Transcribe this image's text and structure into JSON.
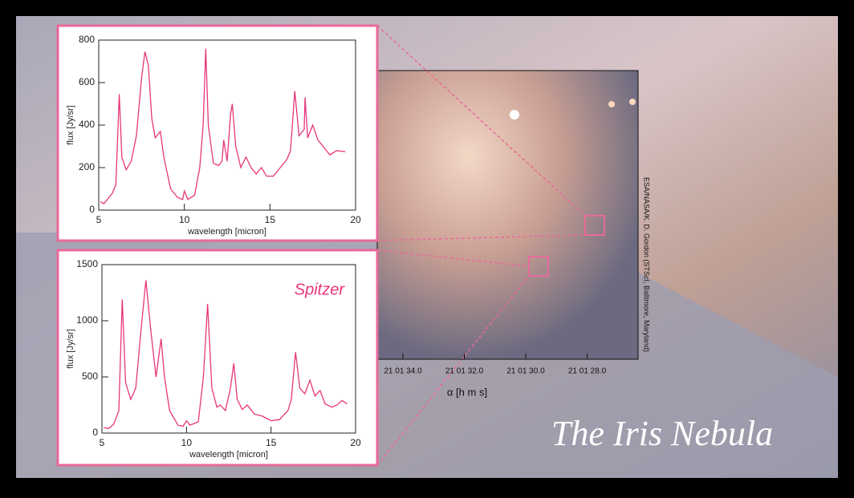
{
  "chart_data": [
    {
      "type": "line",
      "xlabel": "wavelength [micron]",
      "ylabel": "flux [Jy/sr]",
      "xlim": [
        5,
        20
      ],
      "xticks": [
        5,
        10,
        15,
        20
      ],
      "ylim": [
        0,
        800
      ],
      "yticks": [
        0,
        200,
        400,
        600,
        800
      ],
      "x": [
        5.1,
        5.3,
        5.6,
        5.8,
        6.0,
        6.2,
        6.35,
        6.6,
        6.9,
        7.2,
        7.5,
        7.7,
        7.9,
        8.1,
        8.3,
        8.6,
        8.8,
        9.2,
        9.6,
        9.9,
        10.0,
        10.2,
        10.6,
        10.9,
        11.1,
        11.25,
        11.4,
        11.7,
        12.0,
        12.2,
        12.3,
        12.5,
        12.7,
        12.8,
        13.0,
        13.3,
        13.6,
        13.9,
        14.2,
        14.5,
        14.8,
        15.2,
        15.6,
        16.0,
        16.2,
        16.45,
        16.7,
        17.0,
        17.05,
        17.2,
        17.5,
        17.8,
        18.2,
        18.5,
        18.9,
        19.4
      ],
      "series": [
        {
          "color": "#e8357a",
          "values": [
            40,
            30,
            60,
            80,
            120,
            545,
            250,
            190,
            230,
            350,
            620,
            745,
            680,
            430,
            340,
            370,
            250,
            100,
            60,
            50,
            90,
            50,
            70,
            200,
            400,
            760,
            400,
            220,
            210,
            230,
            330,
            230,
            450,
            500,
            300,
            200,
            250,
            200,
            170,
            200,
            160,
            160,
            200,
            240,
            280,
            560,
            350,
            380,
            530,
            340,
            400,
            330,
            290,
            260,
            280,
            275
          ]
        }
      ]
    },
    {
      "type": "line",
      "xlabel": "wavelength [micron]",
      "ylabel": "flux [Jy/sr]",
      "annotation": "Spitzer",
      "xlim": [
        5,
        20
      ],
      "xticks": [
        5,
        10,
        15,
        20
      ],
      "ylim": [
        0,
        1500
      ],
      "yticks": [
        0,
        500,
        1000,
        1500
      ],
      "x": [
        5.1,
        5.4,
        5.7,
        6.0,
        6.2,
        6.4,
        6.7,
        7.0,
        7.3,
        7.6,
        7.9,
        8.2,
        8.5,
        8.7,
        9.0,
        9.5,
        9.8,
        10.0,
        10.2,
        10.7,
        11.0,
        11.25,
        11.5,
        11.8,
        12.0,
        12.3,
        12.6,
        12.8,
        13.0,
        13.3,
        13.6,
        14.0,
        14.5,
        15.0,
        15.5,
        16.0,
        16.2,
        16.45,
        16.7,
        17.0,
        17.3,
        17.6,
        17.9,
        18.2,
        18.6,
        18.9,
        19.2,
        19.5
      ],
      "series": [
        {
          "color": "#e8357a",
          "values": [
            50,
            40,
            80,
            200,
            1190,
            450,
            300,
            400,
            900,
            1360,
            900,
            500,
            840,
            500,
            200,
            70,
            60,
            110,
            70,
            100,
            500,
            1150,
            400,
            230,
            250,
            200,
            400,
            620,
            300,
            210,
            250,
            170,
            150,
            110,
            120,
            200,
            300,
            720,
            400,
            350,
            470,
            330,
            380,
            260,
            230,
            250,
            290,
            260
          ]
        }
      ]
    }
  ],
  "image": {
    "xticks": [
      "21 01 34.0",
      "21 01 32.0",
      "21 01 30.0",
      "21 01 28.0"
    ],
    "xlabel": "α [h m s]",
    "credit": "ESA/NASA/K. D. Gordon (STScI, Baltimore, Maryland)"
  },
  "title": "The Iris Nebula"
}
